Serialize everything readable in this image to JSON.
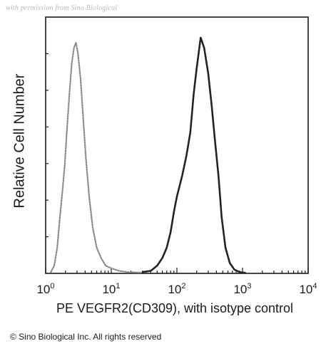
{
  "watermark": "with permission from Sino Biological",
  "copyright": "© Sino Biological Inc. All rights reserved",
  "chart_data": {
    "type": "line",
    "title": "",
    "xlabel": "PE VEGFR2(CD309), with isotype control",
    "ylabel": "Relative Cell Number",
    "xscale": "log",
    "xlim": [
      1,
      10000
    ],
    "ylim": [
      0,
      100
    ],
    "grid": false,
    "x_tick_labels": [
      {
        "base": "10",
        "exp": "0",
        "value": 1
      },
      {
        "base": "10",
        "exp": "1",
        "value": 10
      },
      {
        "base": "10",
        "exp": "2",
        "value": 100
      },
      {
        "base": "10",
        "exp": "3",
        "value": 1000
      },
      {
        "base": "10",
        "exp": "4",
        "value": 10000
      }
    ],
    "series": [
      {
        "color": "#8a8a8a",
        "style": "dotted",
        "x": [
          1.2,
          1.35,
          1.5,
          1.65,
          1.8,
          1.95,
          2.1,
          2.3,
          2.5,
          2.7,
          2.9,
          3.1,
          3.4,
          3.7,
          4.1,
          4.6,
          5.2,
          6.0,
          7.0,
          8.2,
          10,
          13,
          18,
          28
        ],
        "values": [
          0.5,
          3,
          10,
          22,
          32,
          42,
          55,
          70,
          82,
          88,
          90,
          86,
          76,
          62,
          45,
          30,
          18,
          10,
          6,
          3,
          2,
          1,
          0.5,
          0.3
        ]
      },
      {
        "color": "#222222",
        "style": "solid",
        "x": [
          30,
          40,
          50,
          60,
          70,
          80,
          90,
          100,
          120,
          140,
          160,
          180,
          200,
          230,
          260,
          300,
          340,
          380,
          430,
          480,
          550,
          640,
          750,
          900,
          1100
        ],
        "values": [
          0.5,
          1,
          3,
          6,
          10,
          16,
          24,
          30,
          38,
          46,
          55,
          70,
          80,
          92,
          88,
          78,
          65,
          52,
          38,
          22,
          10,
          4,
          1.5,
          0.5,
          0.2
        ]
      }
    ]
  }
}
